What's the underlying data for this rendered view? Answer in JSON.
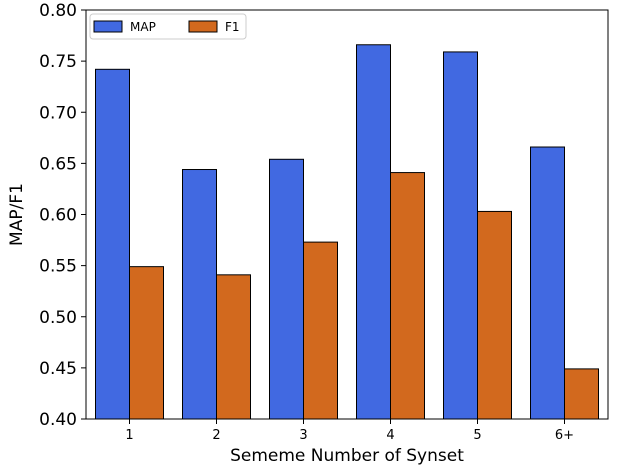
{
  "chart_data": {
    "type": "bar",
    "title": "",
    "xlabel": "Sememe Number of Synset",
    "ylabel": "MAP/F1",
    "categories": [
      "1",
      "2",
      "3",
      "4",
      "5",
      "6+"
    ],
    "series": [
      {
        "name": "MAP",
        "color": "#4169e1",
        "values": [
          0.742,
          0.644,
          0.654,
          0.766,
          0.759,
          0.666
        ]
      },
      {
        "name": "F1",
        "color": "#d2691e",
        "values": [
          0.549,
          0.541,
          0.573,
          0.641,
          0.603,
          0.449
        ]
      }
    ],
    "ylim": [
      0.4,
      0.8
    ],
    "yticks": [
      "0.40",
      "0.45",
      "0.50",
      "0.55",
      "0.60",
      "0.65",
      "0.70",
      "0.75",
      "0.80"
    ],
    "grid": false,
    "legend_position": "top-left",
    "legend_columns": 2
  }
}
